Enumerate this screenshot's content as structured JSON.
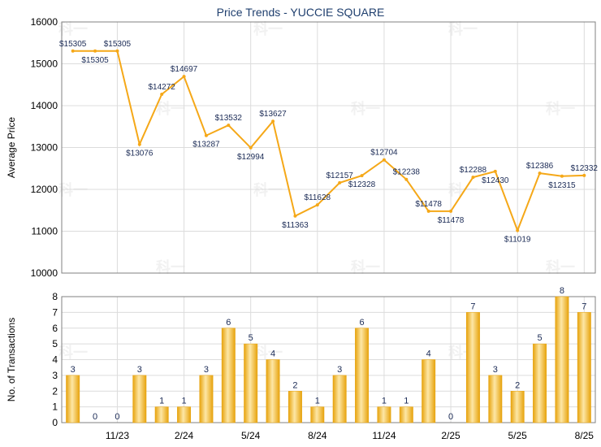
{
  "colors": {
    "line": "#f5a818",
    "bar_light": "#fde7a6",
    "bar_dark": "#e7a30d",
    "grid": "#dcdcdc",
    "axis": "#808080"
  },
  "chart_data": [
    {
      "type": "line",
      "title": "Price Trends - YUCCIE SQUARE",
      "ylabel": "Average Price",
      "ylim": [
        10000,
        16000
      ],
      "yticks": [
        10000,
        11000,
        12000,
        13000,
        14000,
        15000,
        16000
      ],
      "grid": true,
      "values": [
        15305,
        15305,
        15305,
        13076,
        14272,
        14697,
        13287,
        13532,
        12994,
        13627,
        11363,
        11628,
        12157,
        12328,
        12704,
        12238,
        11478,
        11478,
        12288,
        12430,
        11019,
        12386,
        12315,
        12332
      ],
      "labels": [
        "$15305",
        "$15305",
        "$15305",
        "$13076",
        "$14272",
        "$14697",
        "$13287",
        "$13532",
        "$12994",
        "$13627",
        "$11363",
        "$11628",
        "$12157",
        "$12328",
        "$12704",
        "$12238",
        "$11478",
        "$11478",
        "$12288",
        "$12430",
        "$11019",
        "$12386",
        "$12315",
        "$12332"
      ]
    },
    {
      "type": "bar",
      "ylabel": "No. of Transactions",
      "ylim": [
        0,
        8
      ],
      "yticks": [
        0,
        1,
        2,
        3,
        4,
        5,
        6,
        7,
        8
      ],
      "grid": true,
      "values": [
        3,
        0,
        0,
        3,
        1,
        1,
        3,
        6,
        5,
        4,
        2,
        1,
        3,
        6,
        1,
        1,
        4,
        0,
        7,
        3,
        2,
        5,
        8,
        7
      ],
      "xticks": [
        {
          "index": 2.5,
          "label": "11/23"
        },
        {
          "index": 5.5,
          "label": "2/24"
        },
        {
          "index": 8.5,
          "label": "5/24"
        },
        {
          "index": 11.5,
          "label": "8/24"
        },
        {
          "index": 14.5,
          "label": "11/24"
        },
        {
          "index": 17.5,
          "label": "2/25"
        },
        {
          "index": 20.5,
          "label": "5/25"
        },
        {
          "index": 23.5,
          "label": "8/25"
        }
      ]
    }
  ]
}
